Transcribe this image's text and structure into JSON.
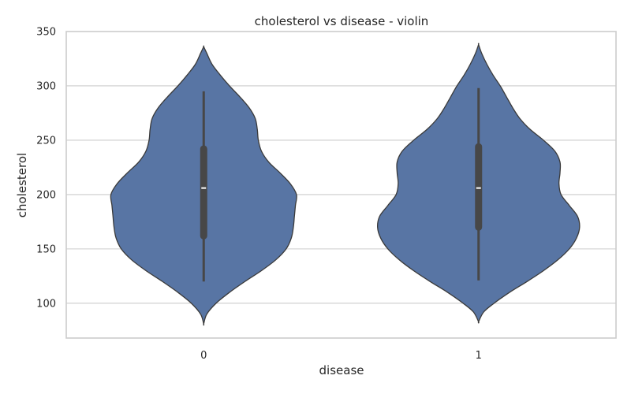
{
  "chart_data": {
    "type": "violin",
    "title": "cholesterol vs disease - violin",
    "xlabel": "disease",
    "ylabel": "cholesterol",
    "ylim": [
      68,
      350
    ],
    "yticks": [
      100,
      150,
      200,
      250,
      300,
      350
    ],
    "grid": "horizontal",
    "categories": [
      "0",
      "1"
    ],
    "fill_color": "#5875a4",
    "edge_color": "#3a3a3a",
    "violins": [
      {
        "category": "0",
        "min": 120,
        "q1": 162,
        "median": 206,
        "q3": 242,
        "max": 295,
        "density": [
          [
            81,
            0.0
          ],
          [
            90,
            0.03
          ],
          [
            100,
            0.12
          ],
          [
            110,
            0.25
          ],
          [
            120,
            0.4
          ],
          [
            130,
            0.56
          ],
          [
            140,
            0.7
          ],
          [
            150,
            0.8
          ],
          [
            160,
            0.85
          ],
          [
            170,
            0.87
          ],
          [
            180,
            0.88
          ],
          [
            190,
            0.89
          ],
          [
            200,
            0.9
          ],
          [
            210,
            0.84
          ],
          [
            220,
            0.74
          ],
          [
            230,
            0.63
          ],
          [
            240,
            0.56
          ],
          [
            250,
            0.53
          ],
          [
            260,
            0.52
          ],
          [
            270,
            0.5
          ],
          [
            280,
            0.44
          ],
          [
            290,
            0.35
          ],
          [
            300,
            0.25
          ],
          [
            310,
            0.16
          ],
          [
            320,
            0.08
          ],
          [
            330,
            0.03
          ],
          [
            336,
            0.0
          ]
        ]
      },
      {
        "category": "1",
        "min": 121,
        "q1": 170,
        "median": 206,
        "q3": 244,
        "max": 298,
        "density": [
          [
            83,
            0.0
          ],
          [
            92,
            0.05
          ],
          [
            100,
            0.15
          ],
          [
            110,
            0.3
          ],
          [
            120,
            0.47
          ],
          [
            130,
            0.63
          ],
          [
            140,
            0.77
          ],
          [
            150,
            0.88
          ],
          [
            160,
            0.95
          ],
          [
            170,
            0.98
          ],
          [
            180,
            0.96
          ],
          [
            190,
            0.88
          ],
          [
            200,
            0.8
          ],
          [
            210,
            0.78
          ],
          [
            220,
            0.79
          ],
          [
            230,
            0.79
          ],
          [
            240,
            0.74
          ],
          [
            250,
            0.63
          ],
          [
            260,
            0.5
          ],
          [
            270,
            0.4
          ],
          [
            280,
            0.33
          ],
          [
            290,
            0.27
          ],
          [
            300,
            0.21
          ],
          [
            310,
            0.14
          ],
          [
            320,
            0.08
          ],
          [
            330,
            0.03
          ],
          [
            338,
            0.0
          ]
        ]
      }
    ]
  }
}
